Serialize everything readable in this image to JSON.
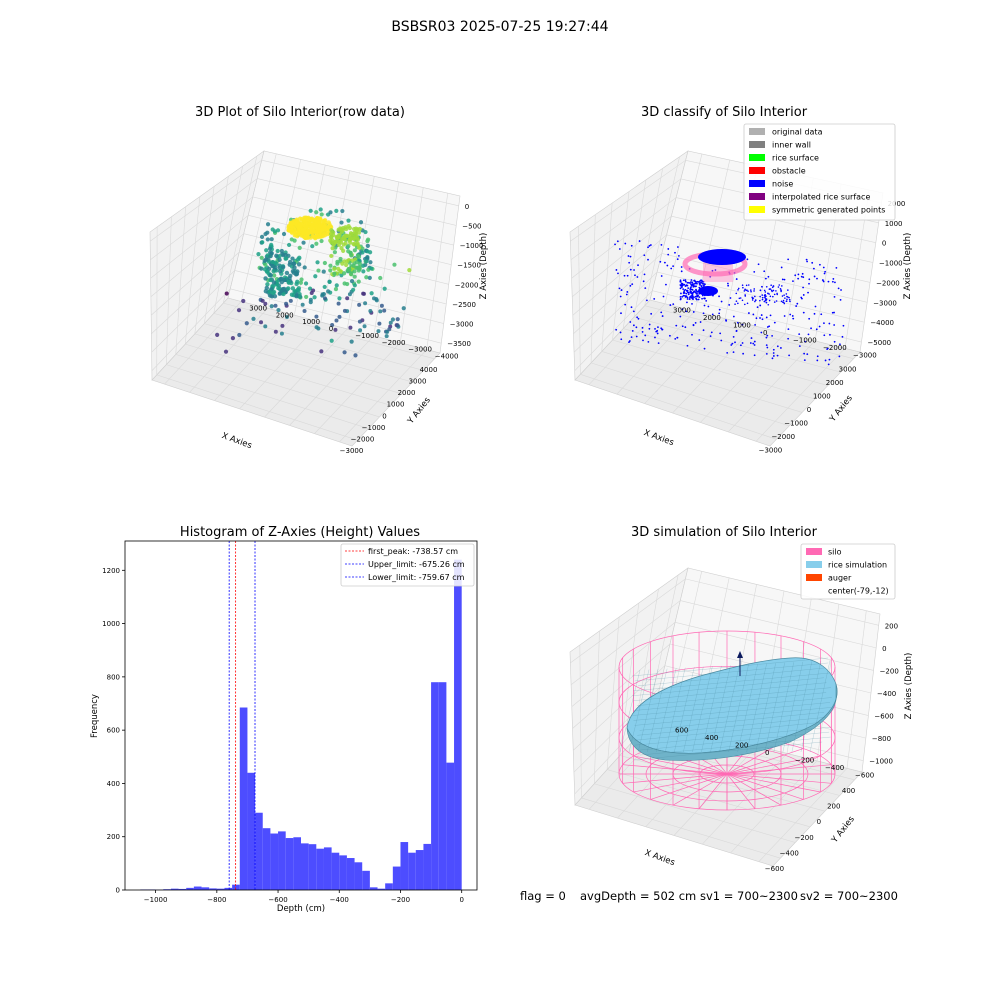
{
  "suptitle": "BSBSR03 2025-07-25 19:27:44",
  "colors": {
    "original_data": "#b0b0b0",
    "inner_wall": "#808080",
    "rice_surface": "#00ff00",
    "obstacle": "#ff0000",
    "noise": "#0000ff",
    "interpolated_rice_surface": "#800080",
    "symmetric_generated_points": "#ffff00",
    "silo": "#ff69b4",
    "rice_simulation": "#87ceeb",
    "auger": "#ff4500",
    "histogram_bar": "#4d4dff",
    "first_peak_line": "#ff0000",
    "limit_line": "#0000ff",
    "pane": "#f2f2f2",
    "grid": "#d9d9d9"
  },
  "chart_data": [
    {
      "type": "scatter",
      "projection": "3d",
      "title": "3D Plot of Silo Interior(row data)",
      "xlabel": "X Axies",
      "ylabel": "Y Axies",
      "zlabel": "Z Axies (Depth)",
      "colormap": "viridis",
      "x_ticks": [
        "−3000",
        "−2000",
        "−1000",
        "0",
        "1000",
        "2000",
        "3000",
        "4000"
      ],
      "y_ticks": [
        "−4000",
        "−3000",
        "−2000",
        "−1000",
        "0",
        "1000",
        "2000",
        "3000"
      ],
      "z_ticks": [
        "0",
        "−500",
        "−1000",
        "−1500",
        "−2000",
        "−2500",
        "−3000",
        "−3500"
      ],
      "grid": true
    },
    {
      "type": "scatter",
      "projection": "3d",
      "title": "3D classify of Silo Interior",
      "xlabel": "X Axies",
      "ylabel": "Y Axies",
      "zlabel": "Z Axies (Depth)",
      "x_ticks": [
        "−3000",
        "−2000",
        "−1000",
        "0",
        "1000",
        "2000",
        "3000"
      ],
      "y_ticks": [
        "−3000",
        "−2000",
        "−1000",
        "0",
        "1000",
        "2000",
        "3000"
      ],
      "z_ticks": [
        "2000",
        "1000",
        "0",
        "−1000",
        "−2000",
        "−3000",
        "−4000",
        "−5000"
      ],
      "legend": [
        "original data",
        "inner wall",
        "rice surface",
        "obstacle",
        "noise",
        "interpolated rice surface",
        "symmetric generated points"
      ],
      "legend_placement": "upper-right",
      "grid": true
    },
    {
      "type": "bar",
      "title": "Histogram of Z-Axies (Height) Values",
      "xlabel": "Depth (cm)",
      "ylabel": "Frequency",
      "xlim": [
        -1100,
        50
      ],
      "ylim": [
        0,
        1310
      ],
      "x_ticks": [
        -1000,
        -800,
        -600,
        -400,
        -200,
        0
      ],
      "y_ticks": [
        0,
        200,
        400,
        600,
        800,
        1000,
        1200
      ],
      "bin_width": 25,
      "bin_starts": [
        -1075,
        -1050,
        -1025,
        -1000,
        -975,
        -950,
        -925,
        -900,
        -875,
        -850,
        -825,
        -800,
        -775,
        -750,
        -725,
        -700,
        -675,
        -650,
        -625,
        -600,
        -575,
        -550,
        -525,
        -500,
        -475,
        -450,
        -425,
        -400,
        -375,
        -350,
        -325,
        -300,
        -275,
        -250,
        -225,
        -200,
        -175,
        -150,
        -125,
        -100,
        -75,
        -50,
        -25
      ],
      "values": [
        0,
        2,
        2,
        1,
        3,
        5,
        4,
        8,
        13,
        10,
        6,
        5,
        8,
        20,
        685,
        440,
        290,
        232,
        212,
        220,
        195,
        198,
        175,
        172,
        155,
        160,
        140,
        130,
        120,
        104,
        72,
        10,
        5,
        25,
        88,
        180,
        140,
        150,
        173,
        438,
        420,
        458,
        410
      ],
      "extra_bars": [
        {
          "start": -100,
          "width": 25,
          "value": 780
        },
        {
          "start": -75,
          "width": 25,
          "value": 780
        },
        {
          "start": -50,
          "width": 25,
          "value": 478
        },
        {
          "start": -25,
          "width": 25,
          "value": 1240
        }
      ],
      "lines": [
        {
          "label": "first_peak: -738.57 cm",
          "x": -738.57,
          "color": "#ff0000"
        },
        {
          "label": "Upper_limit: -675.26 cm",
          "x": -675.26,
          "color": "#0000ff"
        },
        {
          "label": "Lower_limit: -759.67 cm",
          "x": -759.67,
          "color": "#0000ff"
        }
      ],
      "legend_placement": "upper-right"
    },
    {
      "type": "surface",
      "projection": "3d",
      "title": "3D simulation of Silo Interior",
      "xlabel": "X Axies",
      "ylabel": "Y Axies",
      "zlabel": "Z Axies (Depth)",
      "x_ticks": [
        "−600",
        "−400",
        "−200",
        "0",
        "200",
        "400"
      ],
      "y_ticks": [
        "−600",
        "−400",
        "−200",
        "0",
        "200",
        "400",
        "600"
      ],
      "z_ticks": [
        "200",
        "0",
        "−200",
        "−400",
        "−600",
        "−800",
        "−1000"
      ],
      "legend": [
        "silo",
        "rice simulation",
        "auger",
        "center(-79,-12)"
      ],
      "legend_placement": "upper-right",
      "grid": true
    }
  ],
  "info": {
    "flag": "flag = 0",
    "avg_depth": "avgDepth = 502 cm",
    "sv1": "sv1 = 700~2300",
    "sv2": "sv2 = 700~2300"
  }
}
